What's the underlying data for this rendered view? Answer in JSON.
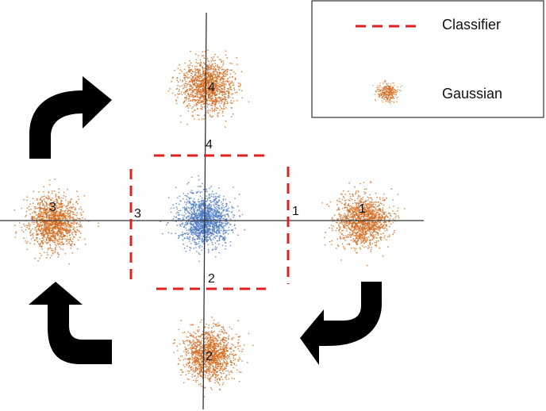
{
  "colors": {
    "gaussian": "#d2691e",
    "center_gaussian": "#4a78c2",
    "classifier": "#e02020",
    "axis": "#333333",
    "arrow": "#000000",
    "legend_border": "#333333"
  },
  "legend": {
    "classifier_label": "Classifier",
    "gaussian_label": "Gaussian"
  },
  "clusters": [
    {
      "id": "1",
      "label": "1"
    },
    {
      "id": "2",
      "label": "2"
    },
    {
      "id": "3",
      "label": "3"
    },
    {
      "id": "4",
      "label": "4"
    }
  ],
  "classifier_labels": [
    {
      "id": "1",
      "label": "1"
    },
    {
      "id": "2",
      "label": "2"
    },
    {
      "id": "3",
      "label": "3"
    },
    {
      "id": "4",
      "label": "4"
    }
  ],
  "arrows": [
    {
      "id": "top-left",
      "icon": "curved-arrow-right-icon"
    },
    {
      "id": "bottom-left",
      "icon": "curved-arrow-up-icon"
    },
    {
      "id": "bottom-right",
      "icon": "curved-arrow-left-icon"
    }
  ]
}
